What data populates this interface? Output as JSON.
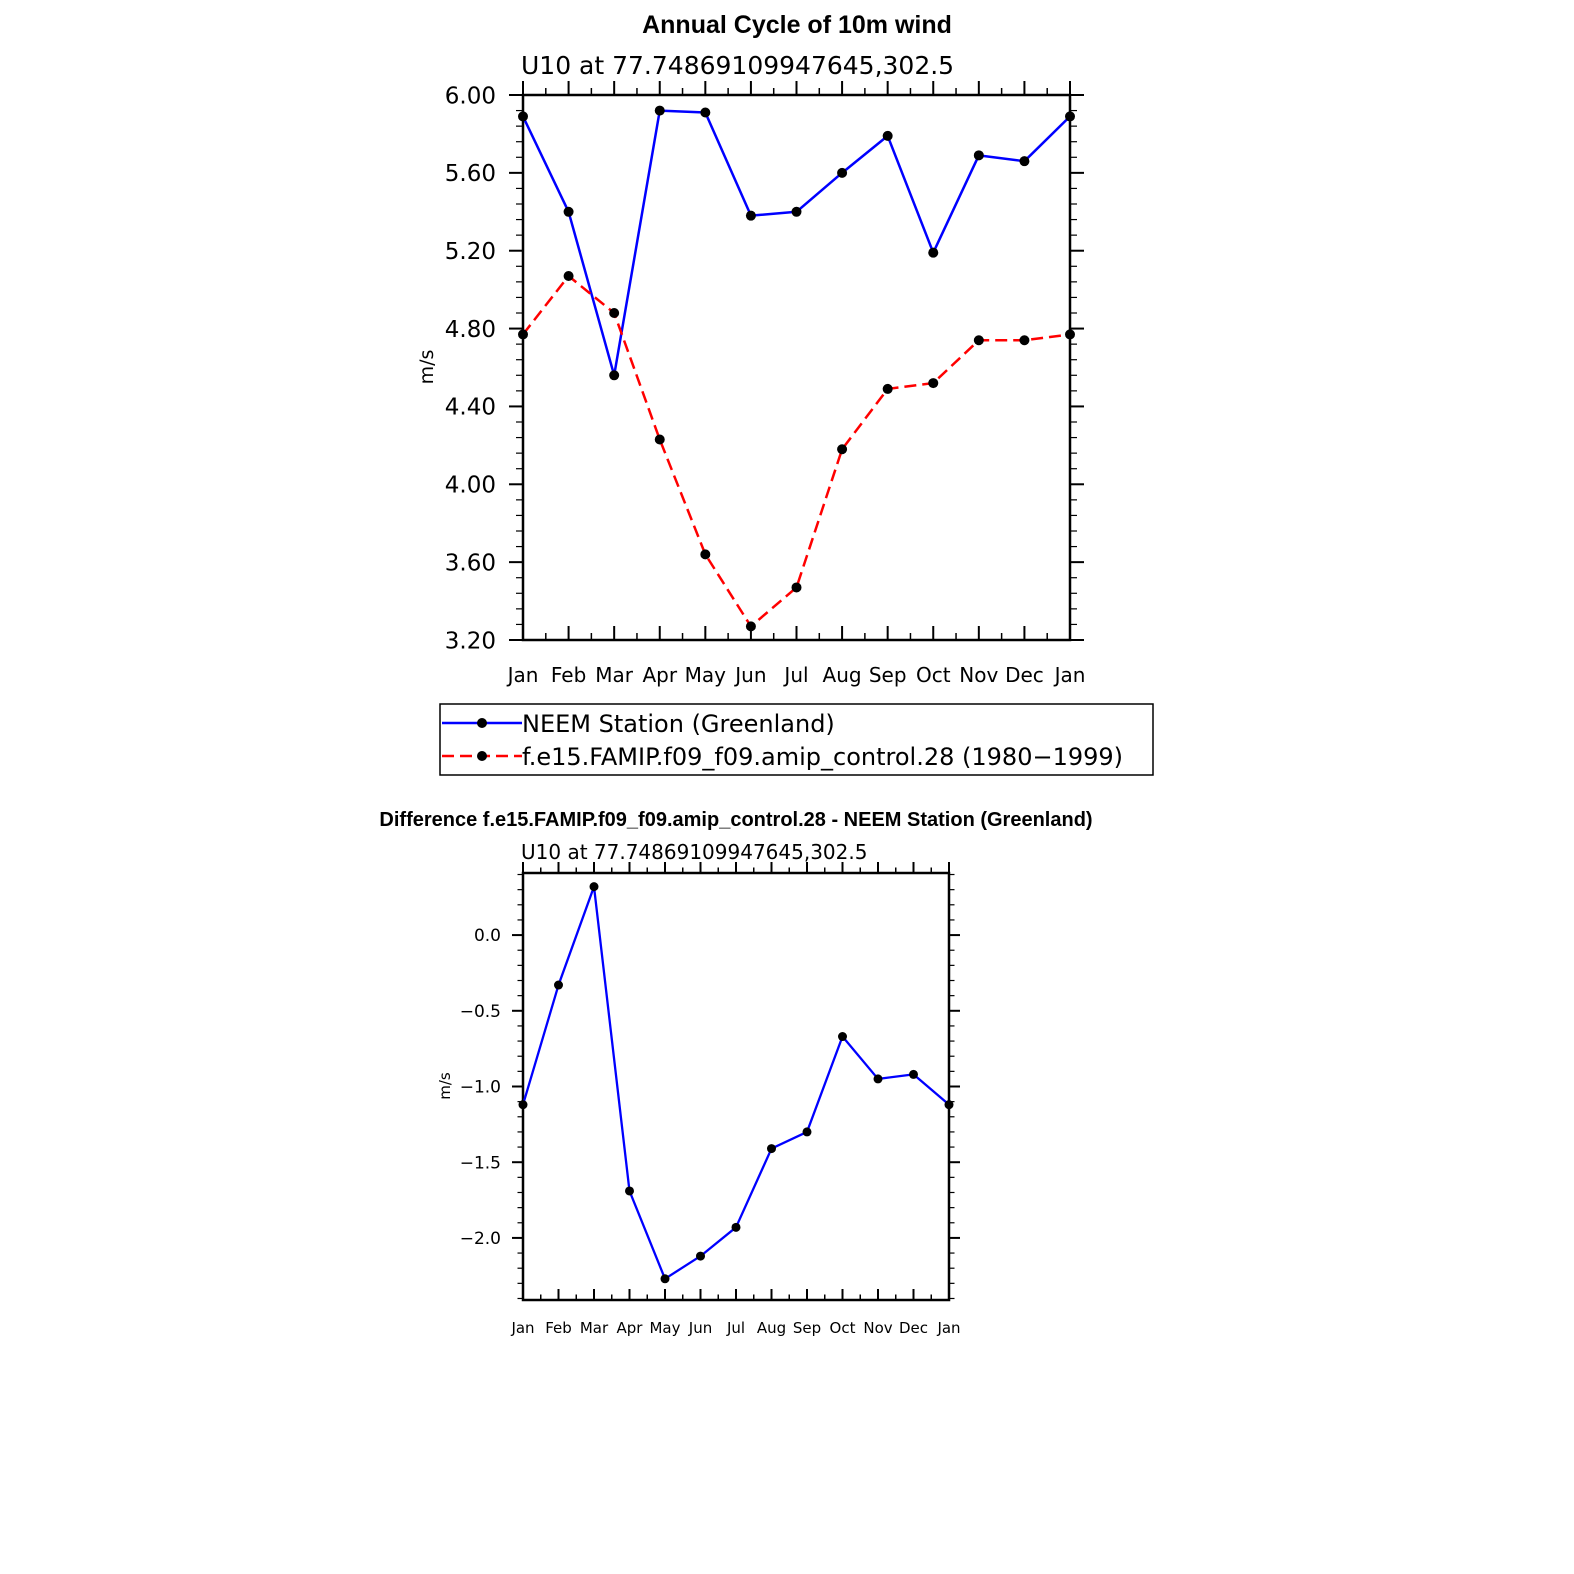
{
  "chart_data": [
    {
      "type": "line",
      "title": "Annual Cycle of 10m wind",
      "subtitle": "U10 at 77.74869109947645,302.5",
      "ylabel": "m/s",
      "categories": [
        "Jan",
        "Feb",
        "Mar",
        "Apr",
        "May",
        "Jun",
        "Jul",
        "Aug",
        "Sep",
        "Oct",
        "Nov",
        "Dec",
        "Jan"
      ],
      "ylim": [
        3.2,
        6.0
      ],
      "yticks": [
        "3.20",
        "3.60",
        "4.00",
        "4.40",
        "4.80",
        "5.20",
        "5.60",
        "6.00"
      ],
      "grid": false,
      "legend_position": "bottom",
      "series": [
        {
          "name": "NEEM Station (Greenland)",
          "color": "#0000ff",
          "dash": "solid",
          "values": [
            5.89,
            5.4,
            4.56,
            5.92,
            5.91,
            5.38,
            5.4,
            5.6,
            5.79,
            5.19,
            5.69,
            5.66,
            5.89
          ]
        },
        {
          "name": "f.e15.FAMIP.f09_f09.amip_control.28 (1980−1999)",
          "color": "#ff0000",
          "dash": "dashed",
          "values": [
            4.77,
            5.07,
            4.88,
            4.23,
            3.64,
            3.27,
            3.47,
            4.18,
            4.49,
            4.52,
            4.74,
            4.74,
            4.77
          ]
        }
      ]
    },
    {
      "type": "line",
      "title": "Difference f.e15.FAMIP.f09_f09.amip_control.28 - NEEM Station (Greenland)",
      "subtitle": "U10 at 77.74869109947645,302.5",
      "ylabel": "m/s",
      "categories": [
        "Jan",
        "Feb",
        "Mar",
        "Apr",
        "May",
        "Jun",
        "Jul",
        "Aug",
        "Sep",
        "Oct",
        "Nov",
        "Dec",
        "Jan"
      ],
      "ylim": [
        -2.41,
        0.41
      ],
      "yticks": [
        "−2.0",
        "−1.5",
        "−1.0",
        "−0.5",
        "0.0"
      ],
      "ytick_values": [
        -2.0,
        -1.5,
        -1.0,
        -0.5,
        0.0
      ],
      "grid": false,
      "series": [
        {
          "color": "#0000ff",
          "dash": "solid",
          "values": [
            -1.12,
            -0.33,
            0.32,
            -1.69,
            -2.27,
            -2.12,
            -1.93,
            -1.41,
            -1.3,
            -0.67,
            -0.95,
            -0.92,
            -1.12
          ]
        }
      ]
    }
  ]
}
